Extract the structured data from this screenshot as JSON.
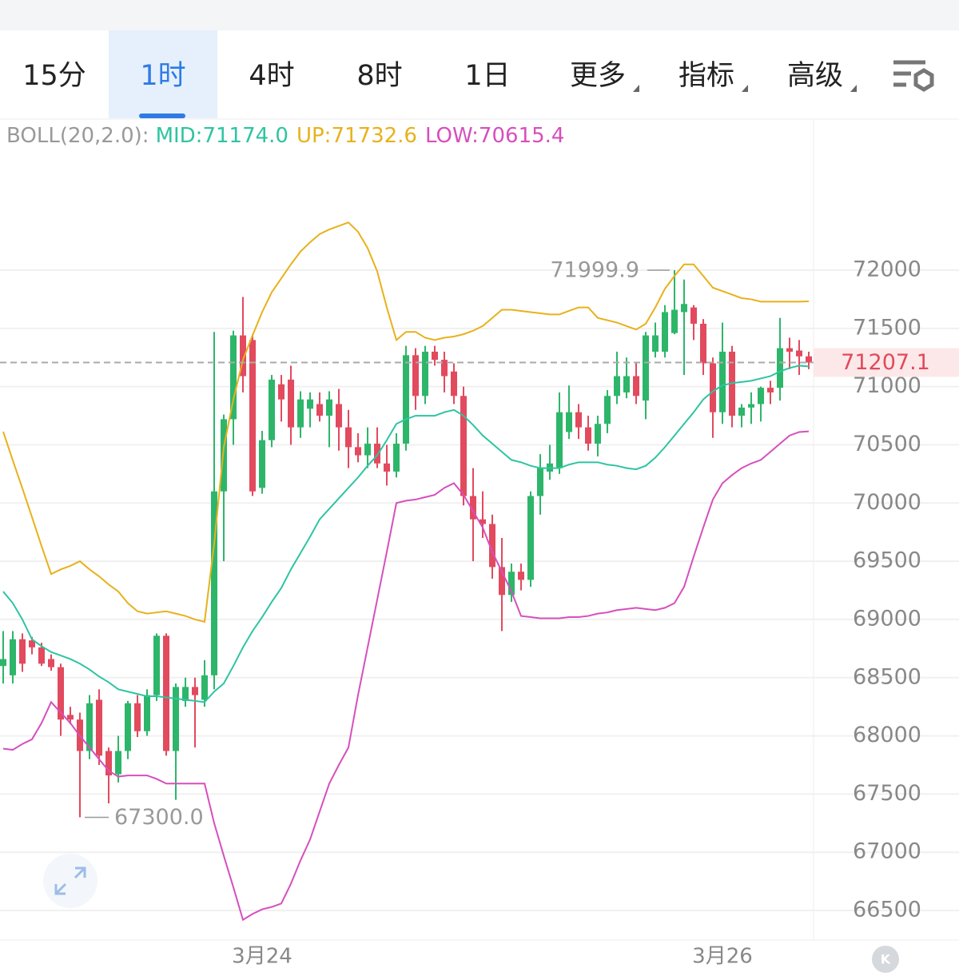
{
  "tabs": [
    "15分",
    "1时",
    "4时",
    "8时",
    "1日",
    "更多",
    "指标",
    "高级"
  ],
  "chart_data": {
    "type": "candlestick",
    "indicator": "BOLL(20,2.0):",
    "categories": [
      null,
      null,
      null,
      null,
      null,
      null,
      null,
      null,
      null,
      null,
      null,
      null,
      null,
      null,
      null,
      null,
      null,
      null,
      null,
      null,
      null,
      null,
      null,
      null,
      null,
      null,
      null,
      "3月24",
      null,
      null,
      null,
      null,
      null,
      null,
      null,
      null,
      null,
      null,
      null,
      null,
      null,
      null,
      null,
      null,
      null,
      null,
      null,
      null,
      null,
      null,
      null,
      null,
      null,
      null,
      null,
      null,
      null,
      null,
      null,
      null,
      null,
      null,
      null,
      null,
      null,
      null,
      null,
      null,
      null,
      null,
      null,
      null,
      null,
      null,
      null,
      "3月26",
      null,
      null,
      null,
      null,
      null,
      null,
      null,
      null,
      null
    ],
    "open": [
      68600,
      68520,
      68830,
      68820,
      68760,
      68660,
      68590,
      68180,
      68140,
      67870,
      68310,
      67870,
      67670,
      67870,
      68280,
      68040,
      68350,
      68860,
      67870,
      68300,
      68420,
      68310,
      68520,
      70100,
      70720,
      71440,
      71400,
      70130,
      70540,
      71020,
      71060,
      70650,
      70810,
      70850,
      70750,
      70850,
      70650,
      70480,
      70410,
      70510,
      70340,
      70270,
      70510,
      71270,
      70920,
      71300,
      71230,
      71130,
      70920,
      70060,
      69860,
      69820,
      69450,
      69210,
      69410,
      69340,
      70060,
      70270,
      70300,
      70610,
      70780,
      70650,
      70510,
      70680,
      70920,
      70950,
      71090,
      70880,
      71300,
      71300,
      71460,
      71640,
      71680,
      71540,
      71200,
      70780,
      71300,
      70750,
      70820,
      70850,
      70990,
      70990,
      71330,
      71310,
      71260
    ],
    "high": [
      68900,
      68900,
      68880,
      68850,
      68800,
      68700,
      68620,
      68250,
      68200,
      68350,
      68400,
      67900,
      68000,
      68300,
      68350,
      68400,
      68880,
      68880,
      68450,
      68500,
      68500,
      68650,
      71470,
      70760,
      71480,
      71770,
      71450,
      70620,
      71100,
      71100,
      71180,
      70960,
      70950,
      70950,
      70960,
      70980,
      70800,
      70600,
      70650,
      70650,
      70500,
      70600,
      71350,
      71330,
      71350,
      71350,
      71300,
      71200,
      71000,
      70300,
      70100,
      69900,
      69700,
      69480,
      69480,
      70100,
      70420,
      70500,
      70950,
      71010,
      70850,
      70750,
      70750,
      70970,
      71300,
      71250,
      71200,
      71470,
      71550,
      71700,
      71999.9,
      71920,
      71700,
      71580,
      71250,
      71550,
      71350,
      70850,
      70950,
      71000,
      71050,
      71590,
      71420,
      71400,
      71300
    ],
    "low": [
      68450,
      68450,
      68550,
      68700,
      68600,
      68560,
      68000,
      68100,
      67300,
      67800,
      67750,
      67420,
      67600,
      67800,
      67990,
      68000,
      68300,
      67830,
      67450,
      68250,
      67900,
      68250,
      68400,
      69500,
      70500,
      70950,
      70060,
      70080,
      70480,
      70700,
      70500,
      70560,
      70650,
      70700,
      70480,
      70450,
      70300,
      70350,
      70300,
      70300,
      70150,
      70220,
      70450,
      70800,
      70850,
      71180,
      70950,
      70850,
      69980,
      69500,
      69700,
      69350,
      68900,
      69150,
      69250,
      69280,
      69900,
      70200,
      70250,
      70550,
      70550,
      70450,
      70400,
      70600,
      70850,
      70900,
      70850,
      70720,
      71250,
      71250,
      71450,
      71100,
      71400,
      71100,
      70560,
      70680,
      70650,
      70650,
      70680,
      70700,
      70850,
      70880,
      71150,
      71100,
      71150
    ],
    "close": [
      68660,
      68830,
      68620,
      68760,
      68620,
      68590,
      68140,
      68140,
      67870,
      68280,
      67830,
      67660,
      67870,
      68280,
      68040,
      68350,
      68860,
      67870,
      68420,
      68420,
      68350,
      68520,
      70100,
      70720,
      71440,
      71090,
      70100,
      70540,
      71060,
      70890,
      70650,
      70890,
      70890,
      70750,
      70890,
      70650,
      70480,
      70410,
      70510,
      70340,
      70270,
      70510,
      71270,
      70920,
      71300,
      71230,
      71090,
      70920,
      70060,
      69860,
      69820,
      69450,
      69210,
      69410,
      69340,
      70060,
      70300,
      70340,
      70780,
      70780,
      70650,
      70510,
      70680,
      70920,
      71090,
      71090,
      70920,
      71440,
      71440,
      71640,
      71660,
      71710,
      71540,
      71200,
      70780,
      71300,
      70750,
      70820,
      70850,
      70990,
      70950,
      71330,
      71300,
      71260,
      71207.1
    ],
    "up_color": "#2db66a",
    "down_color": "#e24a5e",
    "overlays": [
      {
        "name": "MID:71174.0",
        "color": "#2ec4a2",
        "values": [
          69240,
          69140,
          69000,
          68830,
          68770,
          68720,
          68690,
          68660,
          68620,
          68570,
          68510,
          68460,
          68400,
          68380,
          68360,
          68340,
          68340,
          68330,
          68320,
          68310,
          68300,
          68290,
          68380,
          68450,
          68600,
          68760,
          68900,
          69020,
          69150,
          69270,
          69430,
          69570,
          69710,
          69860,
          69950,
          70040,
          70130,
          70220,
          70320,
          70410,
          70540,
          70680,
          70720,
          70750,
          70750,
          70750,
          70780,
          70800,
          70750,
          70670,
          70580,
          70510,
          70440,
          70370,
          70350,
          70320,
          70300,
          70300,
          70300,
          70330,
          70350,
          70350,
          70350,
          70330,
          70320,
          70300,
          70290,
          70320,
          70390,
          70480,
          70580,
          70680,
          70780,
          70890,
          70960,
          71010,
          71030,
          71040,
          71050,
          71070,
          71090,
          71130,
          71160,
          71180,
          71174
        ]
      },
      {
        "name": "UP:71732.6",
        "color": "#e8b11c",
        "values": [
          70613,
          70366,
          70126,
          69880,
          69630,
          69390,
          69430,
          69460,
          69500,
          69430,
          69370,
          69300,
          69240,
          69140,
          69070,
          69050,
          69060,
          69070,
          69050,
          69030,
          69000,
          68980,
          69650,
          70480,
          70890,
          71230,
          71440,
          71640,
          71810,
          71930,
          72050,
          72160,
          72240,
          72310,
          72350,
          72380,
          72410,
          72330,
          72190,
          71990,
          71680,
          71400,
          71470,
          71470,
          71420,
          71400,
          71420,
          71430,
          71450,
          71480,
          71520,
          71590,
          71660,
          71660,
          71650,
          71640,
          71630,
          71620,
          71620,
          71650,
          71680,
          71680,
          71590,
          71570,
          71550,
          71520,
          71490,
          71540,
          71680,
          71840,
          71950,
          72050,
          72050,
          71950,
          71850,
          71820,
          71790,
          71760,
          71750,
          71730,
          71730,
          71730,
          71730,
          71730,
          71732.6
        ]
      },
      {
        "name": "LOW:70615.4",
        "color": "#d64fbd",
        "values": [
          67890,
          67880,
          67930,
          67970,
          68110,
          68290,
          68200,
          68110,
          68000,
          67900,
          67800,
          67700,
          67650,
          67660,
          67660,
          67660,
          67630,
          67590,
          67590,
          67590,
          67590,
          67590,
          67250,
          66970,
          66700,
          66420,
          66470,
          66510,
          66530,
          66560,
          66730,
          66930,
          67110,
          67350,
          67590,
          67750,
          67900,
          68350,
          68760,
          69170,
          69580,
          70000,
          70020,
          70030,
          70050,
          70070,
          70130,
          70170,
          70070,
          69930,
          69790,
          69580,
          69410,
          69240,
          69030,
          69020,
          69010,
          69010,
          69010,
          69020,
          69020,
          69030,
          69050,
          69060,
          69080,
          69090,
          69100,
          69090,
          69080,
          69100,
          69140,
          69280,
          69540,
          69790,
          70030,
          70170,
          70240,
          70300,
          70340,
          70370,
          70440,
          70510,
          70580,
          70610,
          70615.4
        ]
      }
    ],
    "ylim": [
      66253,
      73291
    ],
    "yticks": [
      66500,
      67000,
      67500,
      68000,
      68500,
      69000,
      69500,
      70000,
      70500,
      71000,
      71500,
      72000
    ],
    "grid": true,
    "annotations": [
      {
        "value": 71999.9,
        "label": "71999.9"
      },
      {
        "value": 67300,
        "label": "67300.0"
      }
    ],
    "last_price": {
      "value": 71207.1,
      "label": "71207.1"
    }
  }
}
